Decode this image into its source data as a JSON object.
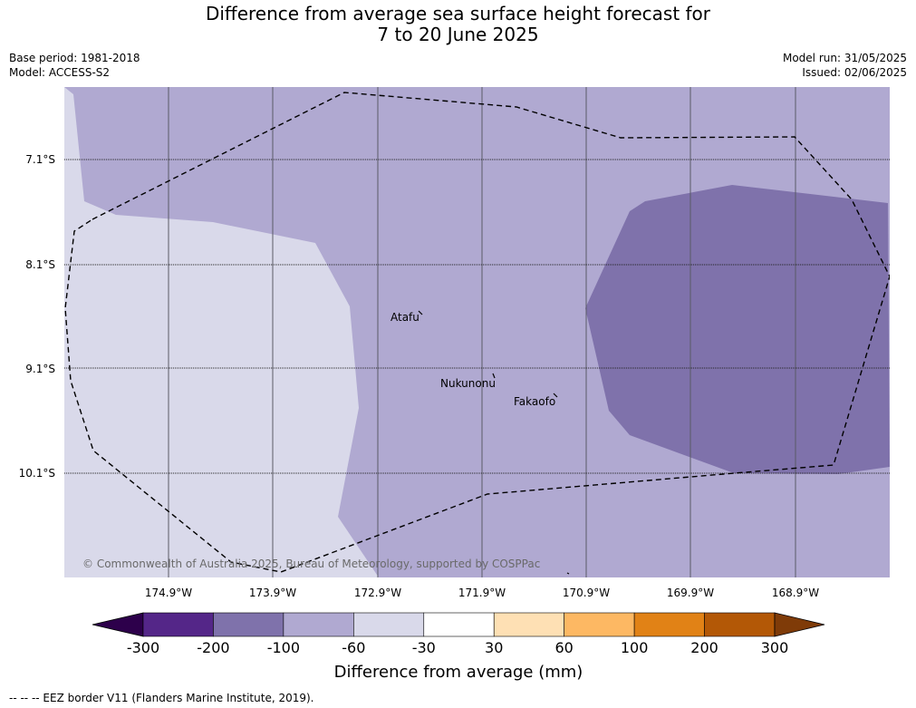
{
  "title": {
    "line1": "Difference from average sea surface height forecast for",
    "line2": "7 to 20 June 2025"
  },
  "meta_left": {
    "base_period": "Base period: 1981-2018",
    "model": "Model: ACCESS-S2"
  },
  "meta_right": {
    "model_run": "Model run: 31/05/2025",
    "issued": "Issued: 02/06/2025"
  },
  "map": {
    "latitude_labels": [
      "7.1°S",
      "8.1°S",
      "9.1°S",
      "10.1°S"
    ],
    "longitude_labels": [
      "174.9°W",
      "173.9°W",
      "172.9°W",
      "171.9°W",
      "170.9°W",
      "169.9°W",
      "168.9°W"
    ],
    "places": [
      "Atafu",
      "Nukunonu",
      "Fakaofo"
    ],
    "copyright": "© Commonwealth of Australia 2025, Bureau of Meteorology, supported by COSPPac",
    "anomaly_colors": {
      "minus_200_to_minus_100": "#7f72ab",
      "minus_100_to_minus_60": "#b0a9d1",
      "minus_60_to_minus_30": "#d9d9ea"
    }
  },
  "colorbar": {
    "title": "Difference from average (mm)",
    "tick_labels": [
      "-300",
      "-200",
      "-100",
      "-60",
      "-30",
      "30",
      "60",
      "100",
      "200",
      "300"
    ],
    "bin_colors": [
      "#542688",
      "#7f72ab",
      "#b0a9d1",
      "#d9d9ea",
      "#ffffff",
      "#fee0b4",
      "#fdb863",
      "#e18216",
      "#b35806"
    ],
    "under_color": "#2d004b",
    "over_color": "#7f3b08"
  },
  "footer": {
    "legend_text": "-- -- -- EEZ border V11 (Flanders Marine Institute, 2019)."
  }
}
